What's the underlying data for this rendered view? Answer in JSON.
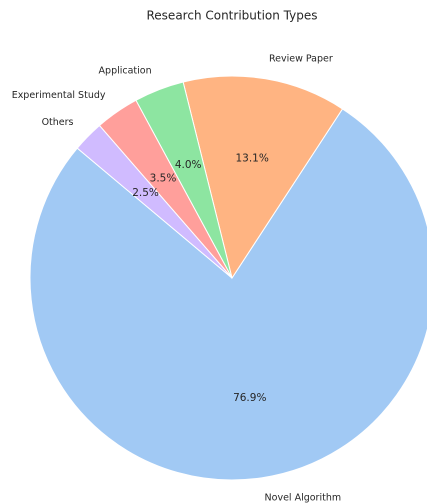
{
  "chart_data": {
    "type": "pie",
    "title": "Research Contribution Types",
    "categories": [
      "Novel Algorithm",
      "Review Paper",
      "Application",
      "Experimental Study",
      "Others"
    ],
    "values": [
      76.9,
      13.1,
      4.0,
      3.5,
      2.5
    ],
    "value_labels": [
      "76.9%",
      "13.1%",
      "4.0%",
      "3.5%",
      "2.5%"
    ],
    "colors": [
      "#a1c9f4",
      "#ffb482",
      "#8de5a1",
      "#ff9f9b",
      "#d0bbff"
    ]
  }
}
